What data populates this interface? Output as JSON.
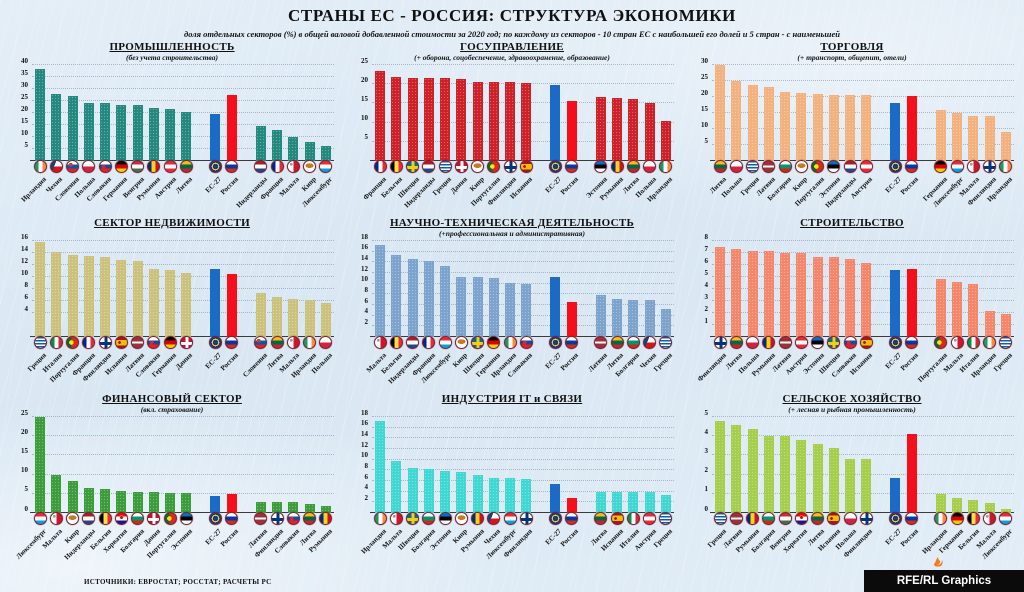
{
  "header": {
    "title": "СТРАНЫ ЕС - РОССИЯ: СТРУКТУРА ЭКОНОМИКИ",
    "subtitle": "доля отдельных секторов (%) в общей валовой добавленной стоимости за 2020 год; по каждому из секторов - 10 стран ЕС с наибольшей его долей и 5 стран - с наименьшей"
  },
  "footer": {
    "sources": "ИСТОЧНИКИ: ЕВРОСТАТ; РОССТАТ; РАСЧЕТЫ РС",
    "credit": "RFE/RL Graphics"
  },
  "colors": {
    "eu_bar": "#1b6ac6",
    "russia_bar": "#f50f1a"
  },
  "chart_data": [
    {
      "type": "bar",
      "title": "ПРОМЫШЛЕННОСТЬ",
      "subtitle": "(без учета строительства)",
      "color": "#23897e",
      "ylim": [
        0,
        40
      ],
      "yticks": [
        5,
        10,
        15,
        20,
        25,
        30,
        35,
        40
      ],
      "bars": [
        {
          "label": "Ирландия",
          "value": 38.3,
          "flag": "ireland"
        },
        {
          "label": "Чехия",
          "value": 28.0,
          "flag": "czechia"
        },
        {
          "label": "Словения",
          "value": 27.1,
          "flag": "slovenia"
        },
        {
          "label": "Польша",
          "value": 24.2,
          "flag": "poland"
        },
        {
          "label": "Словакия",
          "value": 24.0,
          "flag": "slovakia"
        },
        {
          "label": "Германия",
          "value": 23.4,
          "flag": "germany"
        },
        {
          "label": "Венгрия",
          "value": 23.3,
          "flag": "hungary"
        },
        {
          "label": "Румыния",
          "value": 22.2,
          "flag": "romania"
        },
        {
          "label": "Австрия",
          "value": 21.5,
          "flag": "austria"
        },
        {
          "label": "Литва",
          "value": 20.5,
          "flag": "lithuania"
        },
        {
          "label": "ЕС-27",
          "value": 19.4,
          "flag": "eu",
          "highlight": "eu"
        },
        {
          "label": "Россия",
          "value": 27.6,
          "flag": "russia",
          "highlight": "russia"
        },
        {
          "label": "Нидерланды",
          "value": 14.4,
          "flag": "netherlands"
        },
        {
          "label": "Франция",
          "value": 13.1,
          "flag": "france"
        },
        {
          "label": "Мальта",
          "value": 10.0,
          "flag": "malta"
        },
        {
          "label": "Кипр",
          "value": 7.9,
          "flag": "cyprus"
        },
        {
          "label": "Люксембург",
          "value": 6.1,
          "flag": "luxembourg"
        }
      ]
    },
    {
      "type": "bar",
      "title": "ГОСУПРАВЛЕНИЕ",
      "subtitle": "(+ оборона, соцобеспечение, здравоохранение, образование)",
      "color": "#cd2027",
      "ylim": [
        0,
        25
      ],
      "yticks": [
        5,
        10,
        15,
        20,
        25
      ],
      "bars": [
        {
          "label": "Франция",
          "value": 23.4,
          "flag": "france"
        },
        {
          "label": "Бельгия",
          "value": 22.0,
          "flag": "belgium"
        },
        {
          "label": "Швеция",
          "value": 21.7,
          "flag": "sweden"
        },
        {
          "label": "Нидерланды",
          "value": 21.7,
          "flag": "netherlands"
        },
        {
          "label": "Греция",
          "value": 21.5,
          "flag": "greece"
        },
        {
          "label": "Дания",
          "value": 21.4,
          "flag": "denmark"
        },
        {
          "label": "Кипр",
          "value": 20.7,
          "flag": "cyprus"
        },
        {
          "label": "Португалия",
          "value": 20.6,
          "flag": "portugal"
        },
        {
          "label": "Финляндия",
          "value": 20.5,
          "flag": "finland"
        },
        {
          "label": "Испания",
          "value": 20.4,
          "flag": "spain"
        },
        {
          "label": "ЕС-27",
          "value": 19.7,
          "flag": "eu",
          "highlight": "eu"
        },
        {
          "label": "Россия",
          "value": 15.6,
          "flag": "russia",
          "highlight": "russia"
        },
        {
          "label": "Эстония",
          "value": 16.7,
          "flag": "estonia"
        },
        {
          "label": "Румыния",
          "value": 16.5,
          "flag": "romania"
        },
        {
          "label": "Литва",
          "value": 16.1,
          "flag": "lithuania"
        },
        {
          "label": "Польша",
          "value": 15.2,
          "flag": "poland"
        },
        {
          "label": "Ирландия",
          "value": 10.5,
          "flag": "ireland"
        }
      ]
    },
    {
      "type": "bar",
      "title": "ТОРГОВЛЯ",
      "subtitle": "(+ транспорт, общепит, отели)",
      "color": "#f2b17d",
      "ylim": [
        0,
        30
      ],
      "yticks": [
        5,
        10,
        15,
        20,
        25,
        30
      ],
      "bars": [
        {
          "label": "Литва",
          "value": 29.9,
          "flag": "lithuania"
        },
        {
          "label": "Польша",
          "value": 24.9,
          "flag": "poland"
        },
        {
          "label": "Греция",
          "value": 23.9,
          "flag": "greece"
        },
        {
          "label": "Латвия",
          "value": 23.2,
          "flag": "latvia"
        },
        {
          "label": "Болгария",
          "value": 21.5,
          "flag": "bulgaria"
        },
        {
          "label": "Кипр",
          "value": 21.4,
          "flag": "cyprus"
        },
        {
          "label": "Португалия",
          "value": 20.9,
          "flag": "portugal"
        },
        {
          "label": "Эстония",
          "value": 20.6,
          "flag": "estonia"
        },
        {
          "label": "Нидерланды",
          "value": 20.5,
          "flag": "netherlands"
        },
        {
          "label": "Австрия",
          "value": 20.5,
          "flag": "austria"
        },
        {
          "label": "ЕС-27",
          "value": 18.0,
          "flag": "eu",
          "highlight": "eu"
        },
        {
          "label": "Россия",
          "value": 20.3,
          "flag": "russia",
          "highlight": "russia"
        },
        {
          "label": "Германия",
          "value": 15.8,
          "flag": "germany"
        },
        {
          "label": "Люксембург",
          "value": 15.0,
          "flag": "luxembourg"
        },
        {
          "label": "Мальта",
          "value": 14.0,
          "flag": "malta"
        },
        {
          "label": "Финляндия",
          "value": 14.0,
          "flag": "finland"
        },
        {
          "label": "Ирландия",
          "value": 9.1,
          "flag": "ireland"
        }
      ]
    },
    {
      "type": "bar",
      "title": "СЕКТОР НЕДВИЖИМОСТИ",
      "subtitle": "",
      "color": "#cbc17b",
      "ylim": [
        0,
        16
      ],
      "yticks": [
        4,
        6,
        8,
        10,
        12,
        14,
        16
      ],
      "bars": [
        {
          "label": "Греция",
          "value": 15.9,
          "flag": "greece"
        },
        {
          "label": "Италия",
          "value": 14.2,
          "flag": "italy"
        },
        {
          "label": "Португалия",
          "value": 13.6,
          "flag": "portugal"
        },
        {
          "label": "Франция",
          "value": 13.5,
          "flag": "france"
        },
        {
          "label": "Финляндия",
          "value": 13.4,
          "flag": "finland"
        },
        {
          "label": "Испания",
          "value": 12.9,
          "flag": "spain"
        },
        {
          "label": "Латвия",
          "value": 12.6,
          "flag": "latvia"
        },
        {
          "label": "Словакия",
          "value": 11.4,
          "flag": "slovakia"
        },
        {
          "label": "Германия",
          "value": 11.1,
          "flag": "germany"
        },
        {
          "label": "Дания",
          "value": 10.7,
          "flag": "denmark"
        },
        {
          "label": "ЕС-27",
          "value": 11.3,
          "flag": "eu",
          "highlight": "eu"
        },
        {
          "label": "Россия",
          "value": 10.5,
          "flag": "russia",
          "highlight": "russia"
        },
        {
          "label": "Словения",
          "value": 7.4,
          "flag": "slovenia"
        },
        {
          "label": "Литва",
          "value": 6.6,
          "flag": "lithuania"
        },
        {
          "label": "Мальта",
          "value": 6.3,
          "flag": "malta"
        },
        {
          "label": "Ирландия",
          "value": 6.1,
          "flag": "ireland"
        },
        {
          "label": "Польша",
          "value": 5.7,
          "flag": "poland"
        }
      ]
    },
    {
      "type": "bar",
      "title": "НАУЧНО-ТЕХНИЧЕСКАЯ ДЕЯТЕЛЬНОСТЬ",
      "subtitle": "(+профессиональная и административная)",
      "color": "#7ca3cd",
      "ylim": [
        0,
        18
      ],
      "yticks": [
        2,
        4,
        6,
        8,
        10,
        12,
        14,
        16,
        18
      ],
      "bars": [
        {
          "label": "Мальта",
          "value": 17.3,
          "flag": "malta"
        },
        {
          "label": "Бельгия",
          "value": 15.4,
          "flag": "belgium"
        },
        {
          "label": "Нидерланды",
          "value": 14.6,
          "flag": "netherlands"
        },
        {
          "label": "Франция",
          "value": 14.2,
          "flag": "france"
        },
        {
          "label": "Люксембург",
          "value": 13.4,
          "flag": "luxembourg"
        },
        {
          "label": "Кипр",
          "value": 11.3,
          "flag": "cyprus"
        },
        {
          "label": "Швеция",
          "value": 11.3,
          "flag": "sweden"
        },
        {
          "label": "Германия",
          "value": 11.1,
          "flag": "germany"
        },
        {
          "label": "Ирландия",
          "value": 10.2,
          "flag": "ireland"
        },
        {
          "label": "Словакия",
          "value": 10.0,
          "flag": "slovakia"
        },
        {
          "label": "ЕС-27",
          "value": 11.2,
          "flag": "eu",
          "highlight": "eu"
        },
        {
          "label": "Россия",
          "value": 6.5,
          "flag": "russia",
          "highlight": "russia"
        },
        {
          "label": "Латвия",
          "value": 7.9,
          "flag": "latvia"
        },
        {
          "label": "Литва",
          "value": 7.1,
          "flag": "lithuania"
        },
        {
          "label": "Болгария",
          "value": 7.0,
          "flag": "bulgaria"
        },
        {
          "label": "Чехия",
          "value": 7.0,
          "flag": "czechia"
        },
        {
          "label": "Греция",
          "value": 5.3,
          "flag": "greece"
        }
      ]
    },
    {
      "type": "bar",
      "title": "СТРОИТЕЛЬСТВО",
      "subtitle": "",
      "color": "#f5866a",
      "ylim": [
        0,
        8
      ],
      "yticks": [
        1,
        2,
        3,
        4,
        5,
        6,
        7,
        8
      ],
      "bars": [
        {
          "label": "Финляндия",
          "value": 7.5,
          "flag": "finland"
        },
        {
          "label": "Литва",
          "value": 7.3,
          "flag": "lithuania"
        },
        {
          "label": "Польша",
          "value": 7.2,
          "flag": "poland"
        },
        {
          "label": "Румыния",
          "value": 7.2,
          "flag": "romania"
        },
        {
          "label": "Латвия",
          "value": 7.0,
          "flag": "latvia"
        },
        {
          "label": "Австрия",
          "value": 7.0,
          "flag": "austria"
        },
        {
          "label": "Эстония",
          "value": 6.7,
          "flag": "estonia"
        },
        {
          "label": "Швеция",
          "value": 6.7,
          "flag": "sweden"
        },
        {
          "label": "Словакия",
          "value": 6.5,
          "flag": "slovakia"
        },
        {
          "label": "Испания",
          "value": 6.2,
          "flag": "spain"
        },
        {
          "label": "ЕС-27",
          "value": 5.6,
          "flag": "eu",
          "highlight": "eu"
        },
        {
          "label": "Россия",
          "value": 5.7,
          "flag": "russia",
          "highlight": "russia"
        },
        {
          "label": "Португалия",
          "value": 4.8,
          "flag": "portugal"
        },
        {
          "label": "Мальта",
          "value": 4.6,
          "flag": "malta"
        },
        {
          "label": "Италия",
          "value": 4.4,
          "flag": "italy"
        },
        {
          "label": "Ирландия",
          "value": 2.2,
          "flag": "ireland"
        },
        {
          "label": "Греция",
          "value": 1.9,
          "flag": "greece"
        }
      ]
    },
    {
      "type": "bar",
      "title": "ФИНАНСОВЫЙ СЕКТОР",
      "subtitle": "(вкл. страхование)",
      "color": "#3b9d39",
      "ylim": [
        0,
        25
      ],
      "yticks": [
        0,
        5,
        10,
        15,
        20,
        25
      ],
      "bars": [
        {
          "label": "Люксембург",
          "value": 24.9,
          "flag": "luxembourg"
        },
        {
          "label": "Мальта",
          "value": 9.8,
          "flag": "malta"
        },
        {
          "label": "Кипр",
          "value": 8.4,
          "flag": "cyprus"
        },
        {
          "label": "Нидерланды",
          "value": 6.5,
          "flag": "netherlands"
        },
        {
          "label": "Бельгия",
          "value": 6.3,
          "flag": "belgium"
        },
        {
          "label": "Хорватия",
          "value": 5.7,
          "flag": "croatia"
        },
        {
          "label": "Болгария",
          "value": 5.6,
          "flag": "bulgaria"
        },
        {
          "label": "Дания",
          "value": 5.4,
          "flag": "denmark"
        },
        {
          "label": "Португалия",
          "value": 5.2,
          "flag": "portugal"
        },
        {
          "label": "Эстония",
          "value": 5.1,
          "flag": "estonia"
        },
        {
          "label": "ЕС-27",
          "value": 4.4,
          "flag": "eu",
          "highlight": "eu"
        },
        {
          "label": "Россия",
          "value": 4.9,
          "flag": "russia",
          "highlight": "russia"
        },
        {
          "label": "Латвия",
          "value": 2.9,
          "flag": "latvia"
        },
        {
          "label": "Финляндия",
          "value": 2.9,
          "flag": "finland"
        },
        {
          "label": "Словакия",
          "value": 2.9,
          "flag": "slovakia"
        },
        {
          "label": "Литва",
          "value": 2.4,
          "flag": "lithuania"
        },
        {
          "label": "Румыния",
          "value": 1.7,
          "flag": "romania"
        }
      ]
    },
    {
      "type": "bar",
      "title": "ИНДУСТРИЯ IT и СВЯЗИ",
      "subtitle": "",
      "color": "#3ed7d2",
      "ylim": [
        0,
        18
      ],
      "yticks": [
        2,
        4,
        6,
        8,
        10,
        12,
        14,
        16,
        18
      ],
      "bars": [
        {
          "label": "Ирландия",
          "value": 17.3,
          "flag": "ireland"
        },
        {
          "label": "Мальта",
          "value": 9.8,
          "flag": "malta"
        },
        {
          "label": "Швеция",
          "value": 8.5,
          "flag": "sweden"
        },
        {
          "label": "Болгария",
          "value": 8.3,
          "flag": "bulgaria"
        },
        {
          "label": "Эстония",
          "value": 7.9,
          "flag": "estonia"
        },
        {
          "label": "Кипр",
          "value": 7.7,
          "flag": "cyprus"
        },
        {
          "label": "Румыния",
          "value": 7.1,
          "flag": "romania"
        },
        {
          "label": "Чехия",
          "value": 6.6,
          "flag": "czechia"
        },
        {
          "label": "Люксембург",
          "value": 6.5,
          "flag": "luxembourg"
        },
        {
          "label": "Финляндия",
          "value": 6.3,
          "flag": "finland"
        },
        {
          "label": "ЕС-27",
          "value": 5.4,
          "flag": "eu",
          "highlight": "eu"
        },
        {
          "label": "Россия",
          "value": 2.9,
          "flag": "russia",
          "highlight": "russia"
        },
        {
          "label": "Литва",
          "value": 4.0,
          "flag": "lithuania"
        },
        {
          "label": "Испания",
          "value": 3.9,
          "flag": "spain"
        },
        {
          "label": "Италия",
          "value": 3.9,
          "flag": "italy"
        },
        {
          "label": "Австрия",
          "value": 3.9,
          "flag": "austria"
        },
        {
          "label": "Греция",
          "value": 3.4,
          "flag": "greece"
        }
      ]
    },
    {
      "type": "bar",
      "title": "СЕЛЬСКОЕ ХОЗЯЙСТВО",
      "subtitle": "(+ лесная и рыбная промышленность)",
      "color": "#a5ce4a",
      "ylim": [
        0,
        5
      ],
      "yticks": [
        0,
        1,
        2,
        3,
        4,
        5
      ],
      "bars": [
        {
          "label": "Греция",
          "value": 4.8,
          "flag": "greece"
        },
        {
          "label": "Латвия",
          "value": 4.6,
          "flag": "latvia"
        },
        {
          "label": "Румыния",
          "value": 4.4,
          "flag": "romania"
        },
        {
          "label": "Болгария",
          "value": 4.0,
          "flag": "bulgaria"
        },
        {
          "label": "Венгрия",
          "value": 4.0,
          "flag": "hungary"
        },
        {
          "label": "Хорватия",
          "value": 3.8,
          "flag": "croatia"
        },
        {
          "label": "Литва",
          "value": 3.6,
          "flag": "lithuania"
        },
        {
          "label": "Испания",
          "value": 3.4,
          "flag": "spain"
        },
        {
          "label": "Польша",
          "value": 2.8,
          "flag": "poland"
        },
        {
          "label": "Финляндия",
          "value": 2.8,
          "flag": "finland"
        },
        {
          "label": "ЕС-27",
          "value": 1.8,
          "flag": "eu",
          "highlight": "eu"
        },
        {
          "label": "Россия",
          "value": 4.1,
          "flag": "russia",
          "highlight": "russia"
        },
        {
          "label": "Ирландия",
          "value": 1.0,
          "flag": "ireland"
        },
        {
          "label": "Германия",
          "value": 0.8,
          "flag": "germany"
        },
        {
          "label": "Бельгия",
          "value": 0.7,
          "flag": "belgium"
        },
        {
          "label": "Мальта",
          "value": 0.5,
          "flag": "malta"
        },
        {
          "label": "Люксембург",
          "value": 0.2,
          "flag": "luxembourg"
        }
      ]
    }
  ]
}
